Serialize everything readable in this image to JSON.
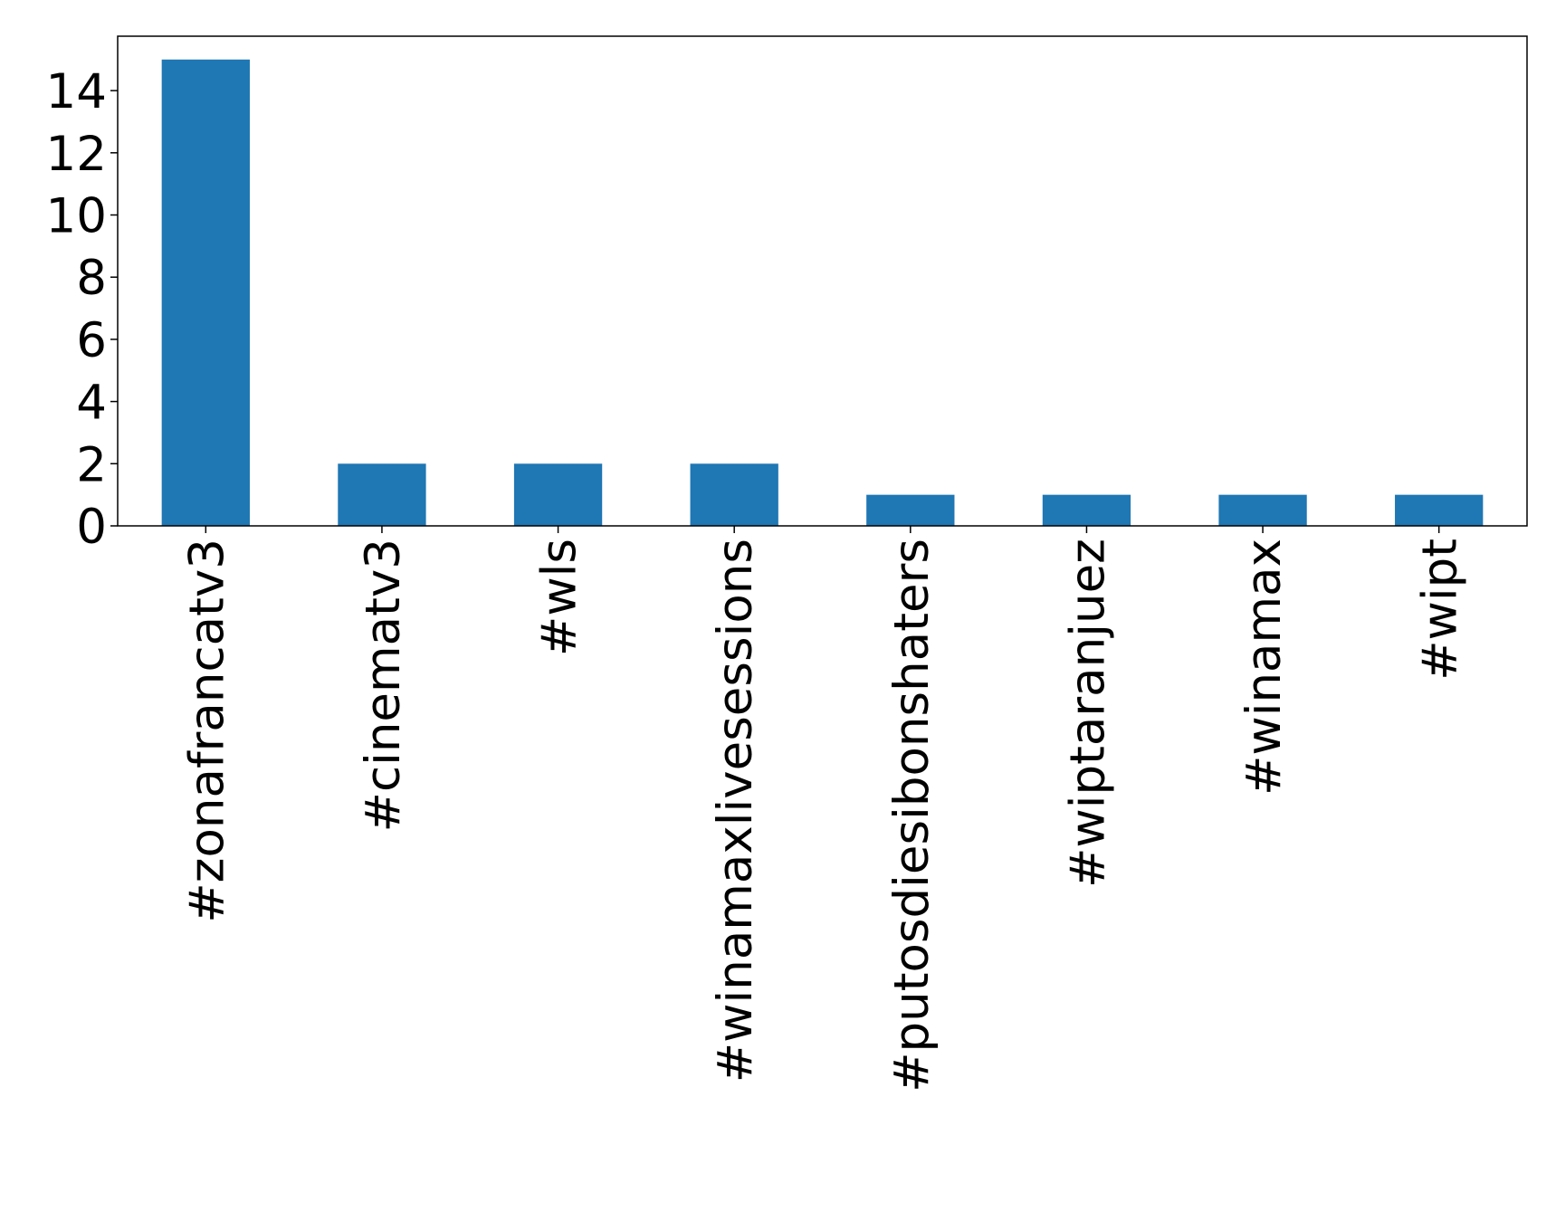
{
  "chart_data": {
    "type": "bar",
    "categories": [
      "#zonafrancatv3",
      "#cinematv3",
      "#wls",
      "#winamaxlivesessions",
      "#putosdiesibonshaters",
      "#wiptaranjuez",
      "#winamax",
      "#wipt"
    ],
    "values": [
      15,
      2,
      2,
      2,
      1,
      1,
      1,
      1
    ],
    "color": "#1f77b4",
    "ylim": [
      0,
      15.75
    ],
    "yticks": [
      0,
      2,
      4,
      6,
      8,
      10,
      12,
      14
    ],
    "grid": false
  }
}
